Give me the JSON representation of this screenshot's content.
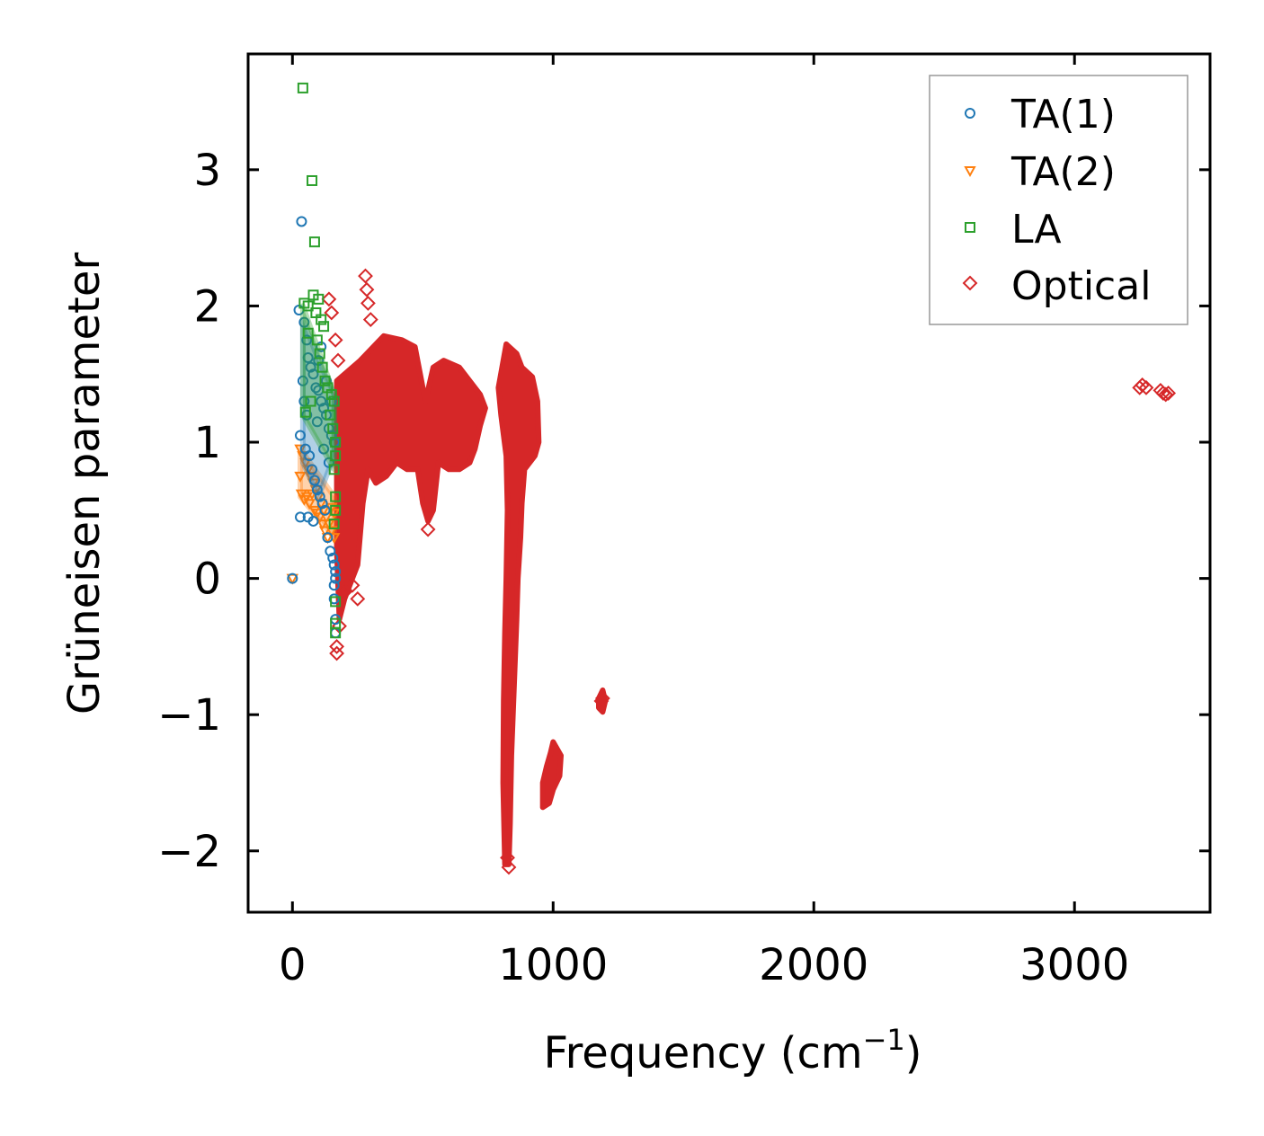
{
  "chart_data": {
    "type": "scatter",
    "title": "",
    "xlabel": "Frequency (cm",
    "xlabel_sup": "−1",
    "xlabel_end": ")",
    "ylabel": "Grüneisen parameter",
    "xlim": [
      -170,
      3520
    ],
    "ylim": [
      -2.45,
      3.85
    ],
    "xticks": [
      0,
      1000,
      2000,
      3000
    ],
    "xtick_labels": [
      "0",
      "1000",
      "2000",
      "3000"
    ],
    "yticks": [
      -2,
      -1,
      0,
      1,
      2,
      3
    ],
    "ytick_labels": [
      "−2",
      "−1",
      "0",
      "1",
      "2",
      "3"
    ],
    "grid": false,
    "legend_position": "top-right",
    "series": [
      {
        "name": "TA(1)",
        "marker": "circle",
        "color": "#1f77b4",
        "points": [
          [
            0,
            0
          ],
          [
            35,
            2.62
          ],
          [
            25,
            1.97
          ],
          [
            45,
            1.88
          ],
          [
            55,
            1.75
          ],
          [
            60,
            1.62
          ],
          [
            70,
            1.55
          ],
          [
            40,
            1.45
          ],
          [
            80,
            1.5
          ],
          [
            90,
            1.4
          ],
          [
            100,
            1.38
          ],
          [
            110,
            1.3
          ],
          [
            120,
            1.25
          ],
          [
            130,
            1.2
          ],
          [
            140,
            1.1
          ],
          [
            150,
            1.05
          ],
          [
            160,
            1.0
          ],
          [
            30,
            1.05
          ],
          [
            50,
            0.95
          ],
          [
            65,
            0.9
          ],
          [
            75,
            0.8
          ],
          [
            85,
            0.72
          ],
          [
            95,
            0.65
          ],
          [
            105,
            0.6
          ],
          [
            115,
            0.55
          ],
          [
            125,
            0.5
          ],
          [
            30,
            0.45
          ],
          [
            60,
            0.45
          ],
          [
            80,
            0.42
          ],
          [
            135,
            0.3
          ],
          [
            145,
            0.2
          ],
          [
            155,
            0.15
          ],
          [
            160,
            0.1
          ],
          [
            165,
            0.05
          ],
          [
            165,
            0.0
          ],
          [
            160,
            -0.05
          ],
          [
            160,
            -0.15
          ],
          [
            165,
            -0.3
          ],
          [
            165,
            -0.4
          ],
          [
            110,
            1.7
          ],
          [
            100,
            1.6
          ],
          [
            130,
            1.45
          ],
          [
            150,
            1.3
          ],
          [
            45,
            1.3
          ],
          [
            55,
            1.2
          ],
          [
            95,
            1.15
          ],
          [
            120,
            0.95
          ],
          [
            140,
            0.85
          ]
        ],
        "band": [
          [
            40,
            1.9
          ],
          [
            100,
            1.6
          ],
          [
            160,
            1.35
          ],
          [
            160,
            0.9
          ],
          [
            100,
            0.6
          ],
          [
            40,
            0.85
          ]
        ]
      },
      {
        "name": "TA(2)",
        "marker": "triangle-down",
        "color": "#ff7f0e",
        "points": [
          [
            0,
            0
          ],
          [
            30,
            0.95
          ],
          [
            40,
            0.9
          ],
          [
            50,
            0.85
          ],
          [
            60,
            0.8
          ],
          [
            70,
            0.75
          ],
          [
            80,
            0.7
          ],
          [
            90,
            0.65
          ],
          [
            100,
            0.6
          ],
          [
            110,
            0.55
          ],
          [
            120,
            0.5
          ],
          [
            130,
            0.45
          ],
          [
            140,
            0.4
          ],
          [
            150,
            0.35
          ],
          [
            160,
            0.3
          ],
          [
            35,
            0.62
          ],
          [
            45,
            0.58
          ],
          [
            55,
            0.6
          ],
          [
            65,
            0.55
          ],
          [
            85,
            0.5
          ],
          [
            95,
            0.48
          ],
          [
            105,
            0.45
          ],
          [
            115,
            0.4
          ],
          [
            125,
            0.35
          ],
          [
            135,
            0.3
          ],
          [
            150,
            0.52
          ],
          [
            160,
            0.48
          ],
          [
            30,
            0.75
          ],
          [
            75,
            0.62
          ]
        ],
        "band": [
          [
            30,
            0.95
          ],
          [
            160,
            0.6
          ],
          [
            160,
            0.3
          ],
          [
            30,
            0.6
          ]
        ]
      },
      {
        "name": "LA",
        "marker": "square",
        "color": "#2ca02c",
        "points": [
          [
            40,
            3.6
          ],
          [
            75,
            2.92
          ],
          [
            85,
            2.47
          ],
          [
            45,
            2.02
          ],
          [
            60,
            2.0
          ],
          [
            80,
            2.08
          ],
          [
            90,
            1.95
          ],
          [
            100,
            2.05
          ],
          [
            110,
            1.9
          ],
          [
            95,
            1.75
          ],
          [
            105,
            1.65
          ],
          [
            115,
            1.55
          ],
          [
            125,
            1.45
          ],
          [
            135,
            1.4
          ],
          [
            150,
            1.35
          ],
          [
            160,
            1.3
          ],
          [
            50,
            1.22
          ],
          [
            70,
            1.3
          ],
          [
            165,
            1.0
          ],
          [
            165,
            0.9
          ],
          [
            160,
            0.8
          ],
          [
            165,
            0.6
          ],
          [
            165,
            0.5
          ],
          [
            160,
            0.4
          ],
          [
            165,
            -0.17
          ],
          [
            165,
            -0.33
          ],
          [
            165,
            -0.4
          ],
          [
            155,
            1.1
          ],
          [
            145,
            1.2
          ],
          [
            120,
            1.85
          ],
          [
            60,
            1.8
          ]
        ],
        "band": [
          [
            40,
            2.0
          ],
          [
            160,
            1.35
          ],
          [
            160,
            0.8
          ],
          [
            40,
            1.2
          ]
        ]
      },
      {
        "name": "Optical",
        "marker": "diamond",
        "color": "#d62728",
        "points": [
          [
            140,
            2.05
          ],
          [
            150,
            1.95
          ],
          [
            165,
            1.75
          ],
          [
            175,
            1.6
          ],
          [
            280,
            2.22
          ],
          [
            285,
            2.12
          ],
          [
            290,
            2.02
          ],
          [
            300,
            1.9
          ],
          [
            520,
            0.36
          ],
          [
            1185,
            -0.9
          ],
          [
            1190,
            -0.88
          ],
          [
            3250,
            1.4
          ],
          [
            3260,
            1.42
          ],
          [
            3275,
            1.4
          ],
          [
            3330,
            1.38
          ],
          [
            3340,
            1.36
          ],
          [
            3350,
            1.35
          ],
          [
            3360,
            1.36
          ],
          [
            830,
            -2.12
          ],
          [
            825,
            -2.05
          ],
          [
            170,
            -0.5
          ],
          [
            170,
            -0.55
          ],
          [
            180,
            -0.35
          ],
          [
            200,
            -0.1
          ],
          [
            230,
            -0.05
          ],
          [
            250,
            -0.15
          ]
        ],
        "regions": [
          [
            [
              170,
              1.45
            ],
            [
              260,
              1.6
            ],
            [
              350,
              1.78
            ],
            [
              420,
              1.75
            ],
            [
              470,
              1.7
            ],
            [
              510,
              1.3
            ],
            [
              540,
              1.55
            ],
            [
              580,
              1.6
            ],
            [
              640,
              1.55
            ],
            [
              680,
              1.45
            ],
            [
              720,
              1.35
            ],
            [
              740,
              1.25
            ],
            [
              720,
              1.12
            ],
            [
              700,
              0.95
            ],
            [
              680,
              0.85
            ],
            [
              640,
              0.8
            ],
            [
              600,
              0.8
            ],
            [
              560,
              0.85
            ],
            [
              540,
              0.5
            ],
            [
              520,
              0.42
            ],
            [
              500,
              0.55
            ],
            [
              480,
              0.8
            ],
            [
              440,
              0.8
            ],
            [
              400,
              0.85
            ],
            [
              360,
              0.75
            ],
            [
              320,
              0.7
            ],
            [
              290,
              0.8
            ],
            [
              270,
              0.55
            ],
            [
              250,
              0.1
            ],
            [
              230,
              0.0
            ],
            [
              200,
              -0.15
            ],
            [
              180,
              -0.3
            ],
            [
              170,
              0.2
            ]
          ],
          [
            [
              790,
              1.4
            ],
            [
              820,
              1.72
            ],
            [
              860,
              1.65
            ],
            [
              880,
              1.55
            ],
            [
              920,
              1.48
            ],
            [
              940,
              1.3
            ],
            [
              945,
              1.0
            ],
            [
              930,
              0.9
            ],
            [
              890,
              0.8
            ],
            [
              880,
              0.55
            ],
            [
              875,
              0.3
            ],
            [
              865,
              0.0
            ],
            [
              860,
              -0.3
            ],
            [
              850,
              -0.8
            ],
            [
              840,
              -1.3
            ],
            [
              835,
              -1.8
            ],
            [
              830,
              -2.1
            ],
            [
              815,
              -2.1
            ],
            [
              808,
              -1.5
            ],
            [
              810,
              -0.9
            ],
            [
              815,
              -0.4
            ],
            [
              820,
              0.0
            ],
            [
              825,
              0.5
            ],
            [
              820,
              0.9
            ],
            [
              800,
              1.2
            ]
          ],
          [
            [
              1000,
              -1.2
            ],
            [
              1030,
              -1.3
            ],
            [
              1025,
              -1.45
            ],
            [
              1000,
              -1.55
            ],
            [
              985,
              -1.65
            ],
            [
              960,
              -1.68
            ],
            [
              960,
              -1.5
            ],
            [
              975,
              -1.38
            ],
            [
              990,
              -1.28
            ]
          ],
          [
            [
              1175,
              -0.88
            ],
            [
              1190,
              -0.82
            ],
            [
              1200,
              -0.9
            ],
            [
              1190,
              -0.98
            ],
            [
              1175,
              -0.95
            ]
          ]
        ]
      }
    ]
  }
}
